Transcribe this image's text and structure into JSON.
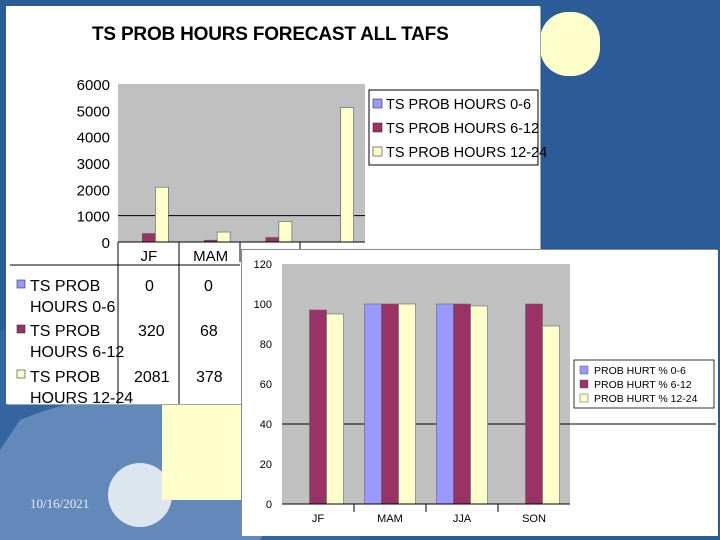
{
  "footer": {
    "date": "10/16/2021"
  },
  "colors": {
    "background": "#2b5c98",
    "series_0_6": "#9999ff",
    "series_6_12": "#993366",
    "series_12_24": "#ffffcc",
    "accent_yellow": "#f3e21a"
  },
  "chart_data": [
    {
      "type": "bar",
      "title": "TS PROB HOURS FORECAST ALL TAFS",
      "categories": [
        "JF",
        "MAM",
        "JJA",
        "SON"
      ],
      "ylim": [
        0,
        6000
      ],
      "yticks": [
        0,
        1000,
        2000,
        3000,
        4000,
        5000,
        6000
      ],
      "grid": false,
      "legend": "right",
      "series": [
        {
          "name": "TS PROB HOURS 0-6",
          "values": [
            0,
            0,
            0,
            0
          ]
        },
        {
          "name": "TS PROB HOURS 6-12",
          "values": [
            320,
            68,
            170,
            0
          ]
        },
        {
          "name": "TS PROB HOURS 12-24",
          "values": [
            2081,
            378,
            780,
            5100
          ]
        }
      ],
      "reference_line": 1000,
      "table": {
        "rows": [
          {
            "label_line1": "TS PROB",
            "label_line2": "HOURS 0-6",
            "values": [
              "0",
              "0"
            ]
          },
          {
            "label_line1": "TS PROB",
            "label_line2": "HOURS 6-12",
            "values": [
              "320",
              "68"
            ]
          },
          {
            "label_line1": "TS PROB",
            "label_line2": "HOURS 12-24",
            "values": [
              "2081",
              "378"
            ]
          }
        ]
      }
    },
    {
      "type": "bar",
      "categories": [
        "JF",
        "MAM",
        "JJA",
        "SON"
      ],
      "ylim": [
        0,
        120
      ],
      "yticks": [
        0,
        20,
        40,
        60,
        80,
        100,
        120
      ],
      "legend": "right",
      "series": [
        {
          "name": "PROB HURT % 0-6",
          "values": [
            null,
            100,
            100,
            null
          ]
        },
        {
          "name": "PROB HURT % 6-12",
          "values": [
            97,
            100,
            100,
            100
          ]
        },
        {
          "name": "PROB HURT % 12-24",
          "values": [
            95,
            100,
            99,
            89
          ]
        }
      ],
      "reference_line": 40
    }
  ]
}
